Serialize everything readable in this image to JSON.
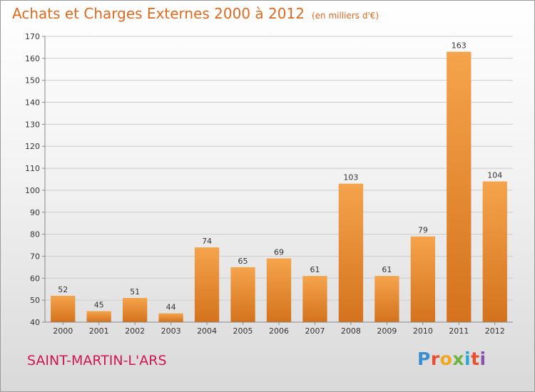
{
  "header": {
    "title": "Achats et Charges Externes 2000 à 2012",
    "subtitle": "(en milliers d'€)"
  },
  "footer": {
    "city": "SAINT-MARTIN-L'ARS",
    "brand_letters": [
      "P",
      "r",
      "o",
      "x",
      "i",
      "t",
      "i"
    ],
    "brand_colors": [
      "#3a8fd1",
      "#e94f2f",
      "#f2a81d",
      "#6cb33f",
      "#2aa7d8",
      "#e94f2f",
      "#8c4fb0"
    ]
  },
  "colors": {
    "bar_top": "#f5a44c",
    "bar_bottom": "#d4721d",
    "grid": "#cccccc",
    "axis": "#888888"
  },
  "chart_data": {
    "type": "bar",
    "title": "Achats et Charges Externes 2000 à 2012",
    "subtitle": "(en milliers d'€)",
    "categories": [
      "2000",
      "2001",
      "2002",
      "2003",
      "2004",
      "2005",
      "2006",
      "2007",
      "2008",
      "2009",
      "2010",
      "2011",
      "2012"
    ],
    "values": [
      52,
      45,
      51,
      44,
      74,
      65,
      69,
      61,
      103,
      61,
      79,
      163,
      104
    ],
    "yticks": [
      40,
      50,
      60,
      70,
      80,
      90,
      100,
      110,
      120,
      130,
      140,
      150,
      160,
      170
    ],
    "ylim": [
      40,
      170
    ],
    "grid": true,
    "data_labels": true
  }
}
